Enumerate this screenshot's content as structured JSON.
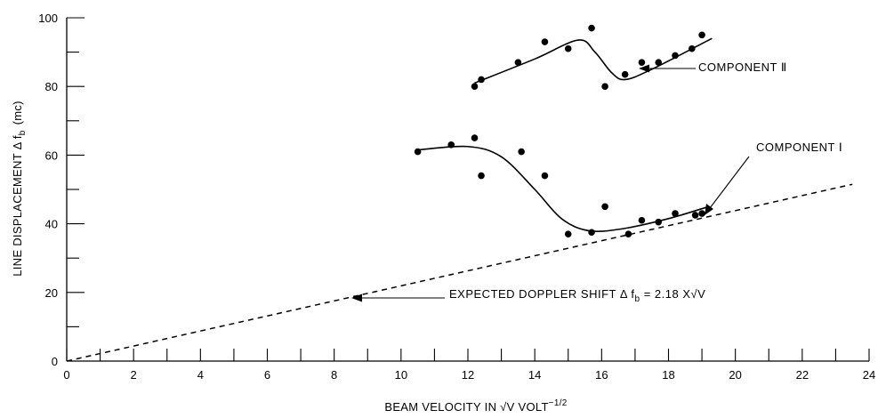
{
  "chart_data": {
    "type": "scatter",
    "xlabel": "BEAM VELOCITY IN √V  VOLT",
    "xlabel_exponent": "−1/2",
    "ylabel": "LINE DISPLACEMENT  Δ f",
    "ylabel_subscript": "b",
    "ylabel_unit": "(mc)",
    "xlim": [
      0,
      24
    ],
    "ylim": [
      0,
      100
    ],
    "x_ticks": [
      0,
      2,
      4,
      6,
      8,
      10,
      12,
      14,
      16,
      18,
      20,
      22,
      24
    ],
    "y_ticks": [
      0,
      20,
      40,
      60,
      80,
      100
    ],
    "grid": false,
    "series": [
      {
        "name": "COMPONENT II",
        "points": [
          [
            12.2,
            80
          ],
          [
            12.4,
            82
          ],
          [
            13.5,
            87
          ],
          [
            14.3,
            93
          ],
          [
            15.0,
            91
          ],
          [
            15.7,
            97
          ],
          [
            16.1,
            80
          ],
          [
            16.7,
            83.5
          ],
          [
            17.2,
            87
          ],
          [
            17.7,
            87
          ],
          [
            18.2,
            89
          ],
          [
            18.7,
            91
          ],
          [
            19.0,
            95
          ]
        ],
        "curve": [
          [
            12.2,
            81
          ],
          [
            14.0,
            88
          ],
          [
            15.3,
            93.5
          ],
          [
            15.8,
            90
          ],
          [
            16.3,
            84
          ],
          [
            16.7,
            82
          ],
          [
            17.5,
            85
          ],
          [
            19.3,
            94
          ]
        ]
      },
      {
        "name": "COMPONENT I",
        "points": [
          [
            10.5,
            61
          ],
          [
            11.5,
            63
          ],
          [
            12.2,
            65
          ],
          [
            12.4,
            54
          ],
          [
            13.6,
            61
          ],
          [
            14.3,
            54
          ],
          [
            15.0,
            37
          ],
          [
            15.7,
            37.5
          ],
          [
            16.1,
            45
          ],
          [
            16.8,
            37
          ],
          [
            17.2,
            41
          ],
          [
            17.7,
            40.5
          ],
          [
            18.2,
            43
          ],
          [
            18.8,
            42.5
          ],
          [
            19.0,
            43
          ]
        ],
        "curve": [
          [
            10.5,
            61.5
          ],
          [
            12.0,
            62.5
          ],
          [
            13.0,
            59.5
          ],
          [
            14.0,
            50
          ],
          [
            14.8,
            41.5
          ],
          [
            15.6,
            38
          ],
          [
            16.6,
            38.5
          ],
          [
            18.0,
            41.5
          ],
          [
            19.2,
            45
          ]
        ]
      },
      {
        "name": "EXPECTED DOPPLER SHIFT",
        "style": "dashed",
        "line": [
          [
            0,
            0
          ],
          [
            23.5,
            51.5
          ]
        ]
      }
    ],
    "annotations": {
      "component_ii": "COMPONENT Ⅱ",
      "component_i": "COMPONENT Ⅰ",
      "doppler_prefix": "EXPECTED DOPPLER SHIFT  Δ f",
      "doppler_sub": "b",
      "doppler_suffix": " = 2.18 X√V"
    }
  }
}
